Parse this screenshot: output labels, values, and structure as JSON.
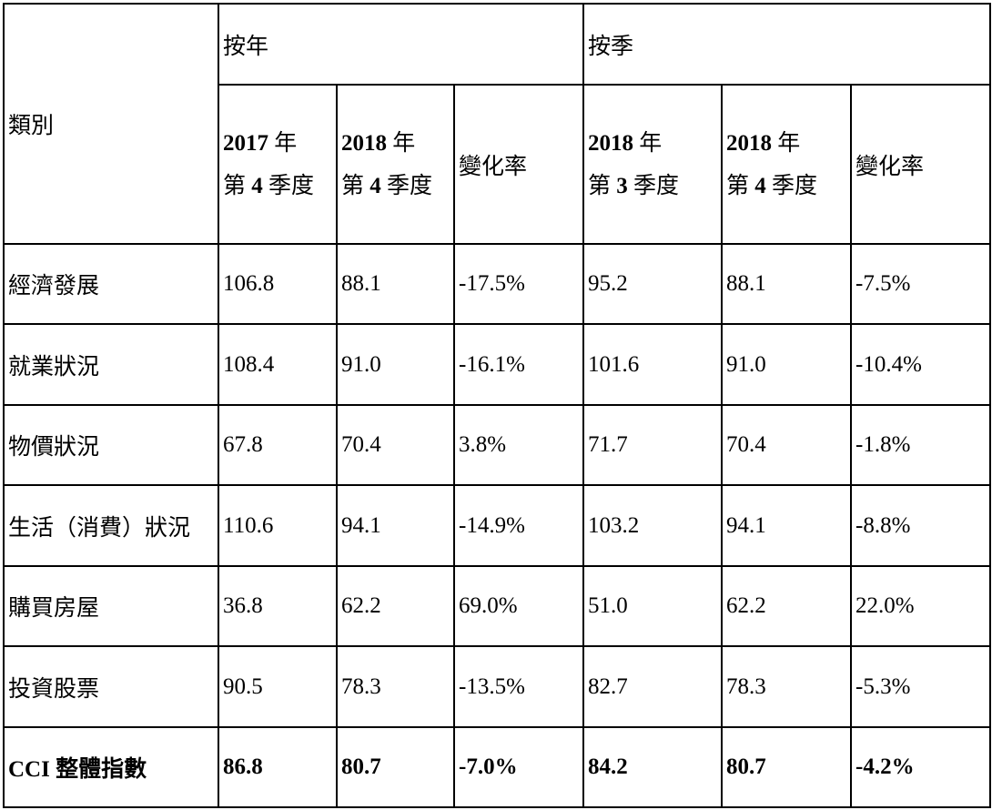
{
  "header": {
    "category": "類別",
    "yoy": "按年",
    "qoq": "按季",
    "columns": [
      {
        "line1_num": "2017",
        "line1_unit": "年",
        "line2_pre": "第",
        "line2_num": "4",
        "line2_unit": "季度"
      },
      {
        "line1_num": "2018",
        "line1_unit": "年",
        "line2_pre": "第",
        "line2_num": "4",
        "line2_unit": "季度"
      },
      {
        "change": "變化率"
      },
      {
        "line1_num": "2018",
        "line1_unit": "年",
        "line2_pre": "第",
        "line2_num": "3",
        "line2_unit": "季度"
      },
      {
        "line1_num": "2018",
        "line1_unit": "年",
        "line2_pre": "第",
        "line2_num": "4",
        "line2_unit": "季度"
      },
      {
        "change": "變化率"
      }
    ]
  },
  "rows": [
    {
      "label": "經濟發展",
      "values": [
        "106.8",
        "88.1",
        "-17.5%",
        "95.2",
        "88.1",
        "-7.5%"
      ]
    },
    {
      "label": "就業狀況",
      "values": [
        "108.4",
        "91.0",
        "-16.1%",
        "101.6",
        "91.0",
        "-10.4%"
      ]
    },
    {
      "label": "物價狀況",
      "values": [
        "67.8",
        "70.4",
        "3.8%",
        "71.7",
        "70.4",
        "-1.8%"
      ]
    },
    {
      "label": "生活（消費）狀況",
      "values": [
        "110.6",
        "94.1",
        "-14.9%",
        "103.2",
        "94.1",
        "-8.8%"
      ]
    },
    {
      "label": "購買房屋",
      "values": [
        "36.8",
        "62.2",
        "69.0%",
        "51.0",
        "62.2",
        "22.0%"
      ]
    },
    {
      "label": "投資股票",
      "values": [
        "90.5",
        "78.3",
        "-13.5%",
        "82.7",
        "78.3",
        "-5.3%"
      ]
    }
  ],
  "total": {
    "label_prefix": "CCI",
    "label_suffix": "整體指數",
    "values": [
      "86.8",
      "80.7",
      "-7.0%",
      "84.2",
      "80.7",
      "-4.2%"
    ]
  }
}
